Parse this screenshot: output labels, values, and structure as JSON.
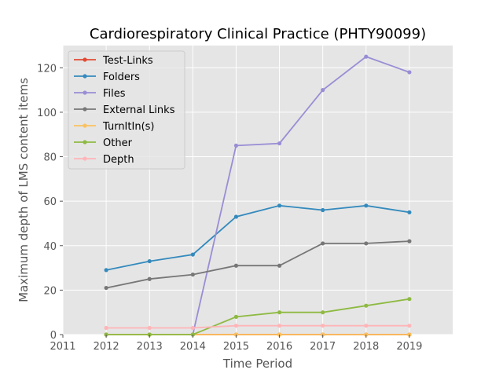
{
  "chart_data": {
    "type": "line",
    "title": "Cardiorespiratory Clinical Practice (PHTY90099)",
    "xlabel": "Time Period",
    "ylabel": "Maximum depth of LMS content items",
    "xlim": [
      2011,
      2020
    ],
    "ylim": [
      0,
      130
    ],
    "xticks": [
      "2011",
      "2012",
      "2013",
      "2014",
      "2015",
      "2016",
      "2017",
      "2018",
      "2019"
    ],
    "yticks": [
      "0",
      "20",
      "40",
      "60",
      "80",
      "100",
      "120"
    ],
    "grid": true,
    "legend_position": "top-left",
    "x": [
      2012,
      2013,
      2014,
      2015,
      2016,
      2017,
      2018,
      2019
    ],
    "series": [
      {
        "name": "Test-Links",
        "color": "#E24A33",
        "values": [
          0,
          0,
          0,
          0,
          0,
          0,
          0,
          0
        ]
      },
      {
        "name": "Folders",
        "color": "#348ABD",
        "values": [
          29,
          33,
          36,
          53,
          58,
          56,
          58,
          55
        ]
      },
      {
        "name": "Files",
        "color": "#988ED5",
        "values": [
          0,
          0,
          0,
          85,
          86,
          110,
          125,
          118
        ]
      },
      {
        "name": "External Links",
        "color": "#777777",
        "values": [
          21,
          25,
          27,
          31,
          31,
          41,
          41,
          42
        ]
      },
      {
        "name": "TurnItIn(s)",
        "color": "#FBC15E",
        "values": [
          0,
          0,
          0,
          0,
          0,
          0,
          0,
          0
        ]
      },
      {
        "name": "Other",
        "color": "#8EBA42",
        "values": [
          0,
          0,
          0,
          8,
          10,
          10,
          13,
          16
        ]
      },
      {
        "name": "Depth",
        "color": "#FFB5B8",
        "values": [
          3,
          3,
          3,
          4,
          4,
          4,
          4,
          4
        ]
      }
    ]
  }
}
